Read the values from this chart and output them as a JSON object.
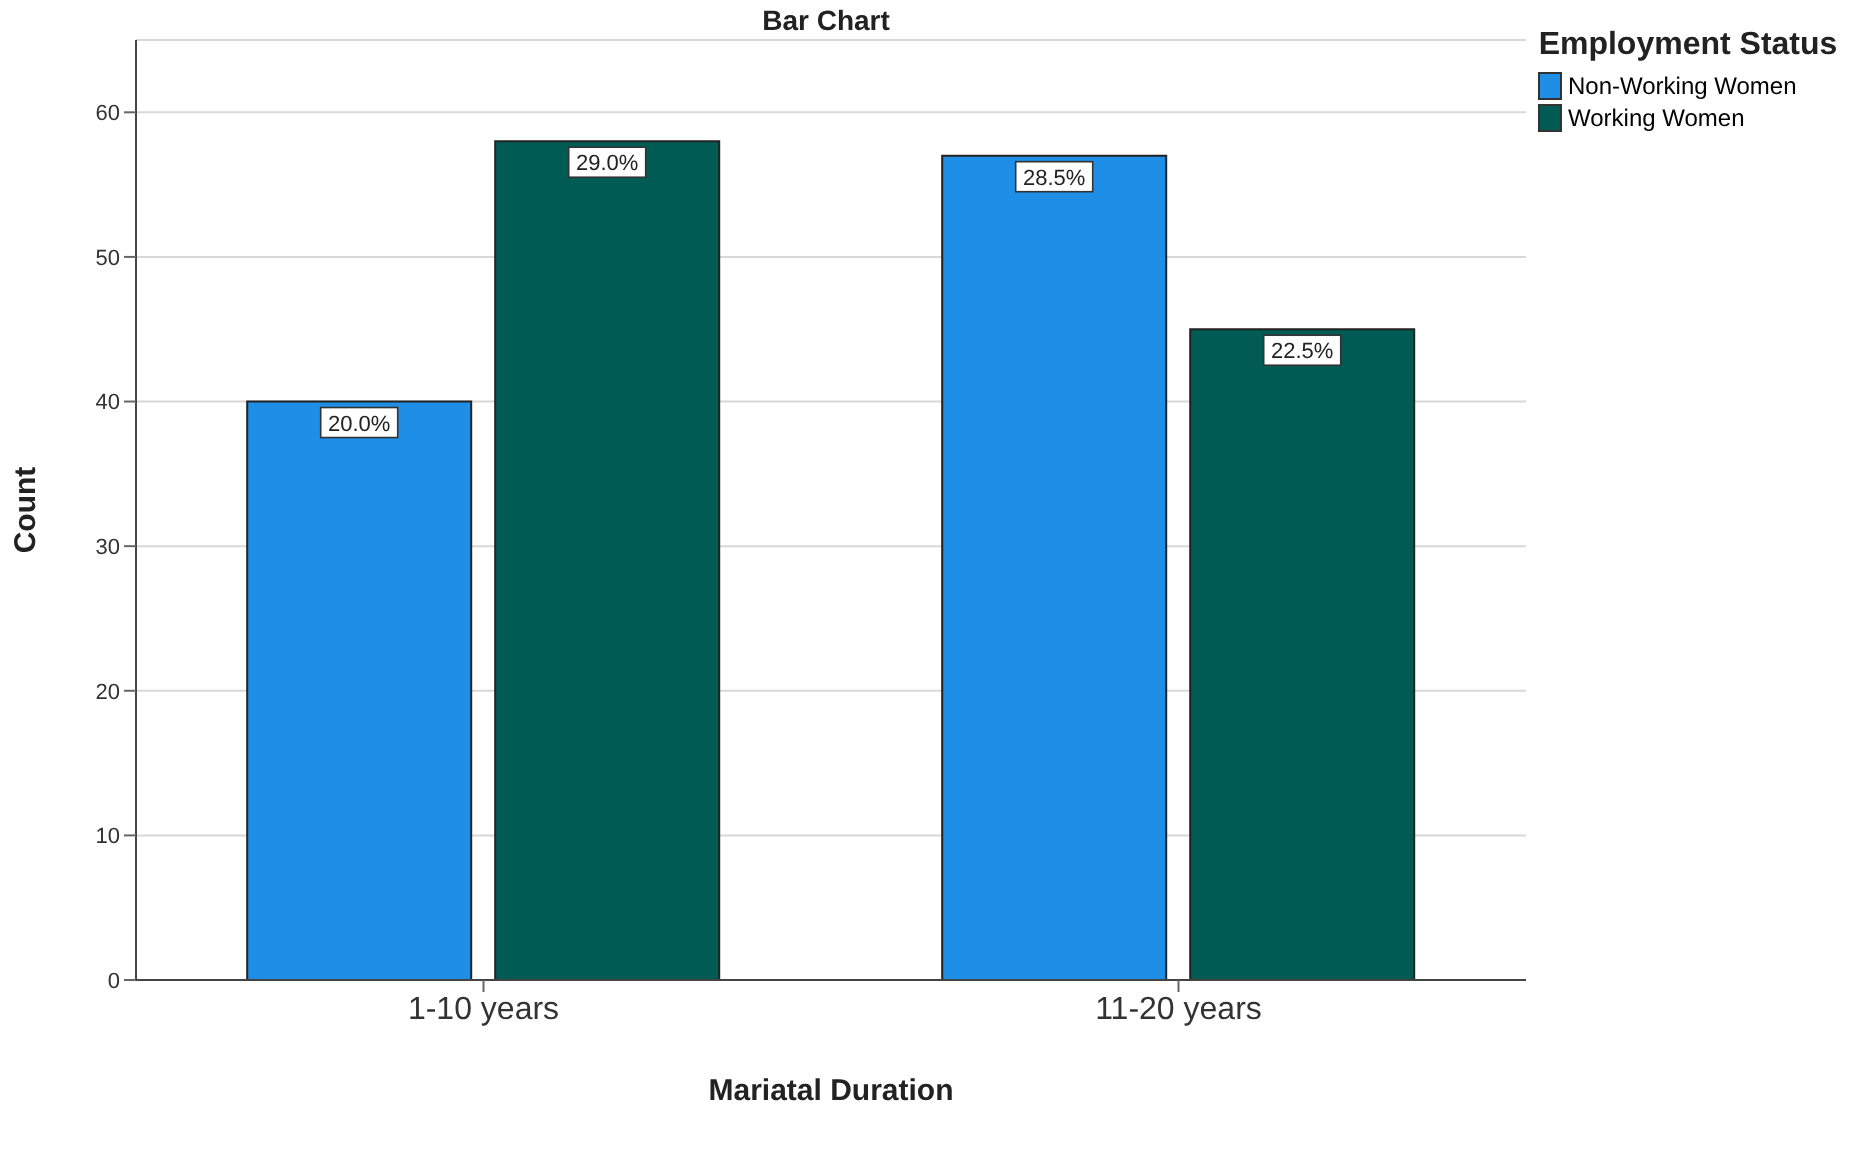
{
  "chart_data": {
    "type": "bar",
    "title": "Bar Chart",
    "xlabel": "Mariatal Duration",
    "ylabel": "Count",
    "legend_title": "Employment Status",
    "categories": [
      "1-10 years",
      "11-20 years"
    ],
    "series": [
      {
        "name": "Non-Working Women",
        "color": "#1e8ee6",
        "values": [
          40,
          57
        ]
      },
      {
        "name": "Working Women",
        "color": "#005b55",
        "values": [
          58,
          45
        ]
      }
    ],
    "annotations": [
      "20.0%",
      "28.5%",
      "29.0%",
      "22.5%"
    ],
    "ylim": [
      0,
      65
    ],
    "yticks": [
      0,
      10,
      20,
      30,
      40,
      50,
      60
    ],
    "grid": "y",
    "legend": "top right"
  }
}
